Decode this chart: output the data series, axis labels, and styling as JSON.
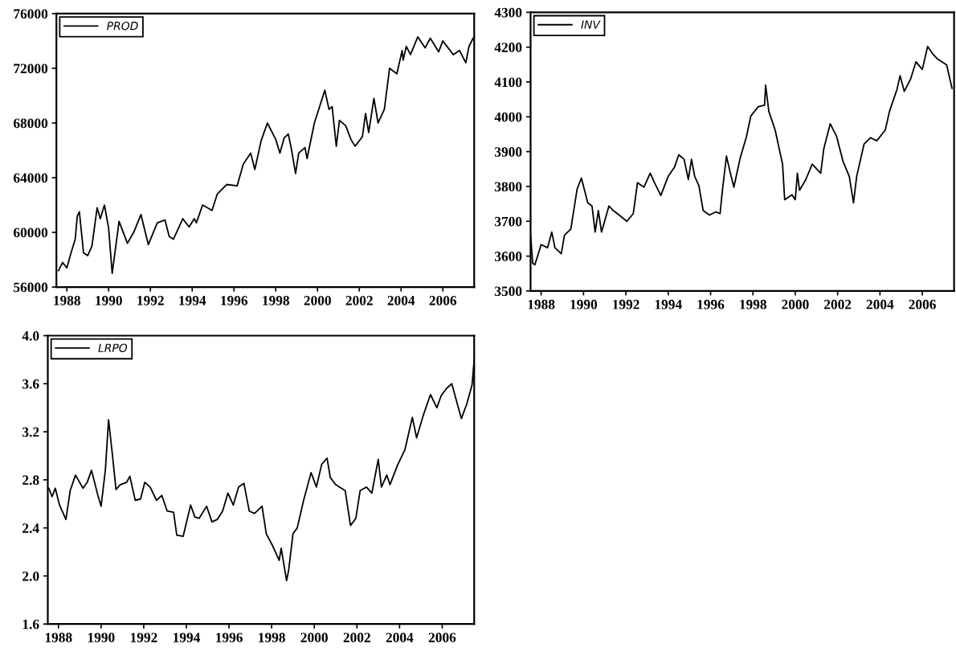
{
  "chart_data": [
    {
      "type": "line",
      "legend": "top left",
      "grid": false,
      "xlim": [
        1987.5,
        2007.5
      ],
      "xticks": [
        1988,
        1990,
        1992,
        1994,
        1996,
        1998,
        2000,
        2002,
        2004,
        2006
      ],
      "ylim": [
        56000,
        76000
      ],
      "yticks": [
        56000,
        60000,
        64000,
        68000,
        72000,
        76000
      ],
      "series": [
        {
          "name": "PROD",
          "color": "#000000",
          "x": [
            1987.6,
            1987.8,
            1988.0,
            1988.2,
            1988.4,
            1988.5,
            1988.6,
            1988.8,
            1989.0,
            1989.2,
            1989.45,
            1989.6,
            1989.8,
            1990.0,
            1990.17,
            1990.5,
            1990.9,
            1991.2,
            1991.55,
            1991.9,
            1992.33,
            1992.7,
            1992.9,
            1993.1,
            1993.55,
            1993.85,
            1994.1,
            1994.2,
            1994.5,
            1994.95,
            1995.2,
            1995.65,
            1996.15,
            1996.45,
            1996.8,
            1997.0,
            1997.3,
            1997.6,
            1998.0,
            1998.2,
            1998.4,
            1998.6,
            1998.75,
            1998.95,
            1999.1,
            1999.4,
            1999.5,
            1999.85,
            2000.35,
            2000.55,
            2000.7,
            2000.9,
            2001.05,
            2001.35,
            2001.6,
            2001.8,
            2002.15,
            2002.3,
            2002.45,
            2002.7,
            2002.9,
            2003.2,
            2003.45,
            2003.8,
            2004.05,
            2004.1,
            2004.25,
            2004.45,
            2004.8,
            2005.15,
            2005.4,
            2005.8,
            2006.0,
            2006.3,
            2006.5,
            2006.8,
            2007.1,
            2007.25,
            2007.45
          ],
          "values": [
            57200,
            57800,
            57400,
            58500,
            59500,
            61200,
            61500,
            58500,
            58300,
            59000,
            61800,
            61000,
            62000,
            60300,
            57000,
            60800,
            59200,
            60000,
            61300,
            59100,
            60700,
            60900,
            59700,
            59500,
            61000,
            60400,
            61000,
            60700,
            62000,
            61600,
            62800,
            63500,
            63400,
            65000,
            65800,
            64600,
            66700,
            68000,
            66800,
            65800,
            66900,
            67200,
            66100,
            64300,
            65800,
            66200,
            65400,
            68000,
            70400,
            69000,
            69200,
            66300,
            68200,
            67800,
            66800,
            66300,
            67000,
            68700,
            67300,
            69800,
            68000,
            69000,
            72000,
            71600,
            73300,
            72600,
            73600,
            73000,
            74300,
            73500,
            74200,
            73200,
            74000,
            73400,
            73000,
            73300,
            72400,
            73600,
            74200
          ]
        }
      ]
    },
    {
      "type": "line",
      "legend": "top left",
      "grid": false,
      "xlim": [
        1987.5,
        2007.5
      ],
      "xticks": [
        1988,
        1990,
        1992,
        1994,
        1996,
        1998,
        2000,
        2002,
        2004,
        2006
      ],
      "ylim": [
        3500,
        4300
      ],
      "yticks": [
        3500,
        3600,
        3700,
        3800,
        3900,
        4000,
        4100,
        4200,
        4300
      ],
      "series": [
        {
          "name": "INV",
          "color": "#000000",
          "x": [
            1987.5,
            1987.6,
            1987.7,
            1988.0,
            1988.3,
            1988.5,
            1988.65,
            1988.95,
            1989.1,
            1989.4,
            1989.7,
            1989.9,
            1990.2,
            1990.4,
            1990.55,
            1990.7,
            1990.85,
            1991.2,
            1991.4,
            1991.6,
            1992.05,
            1992.35,
            1992.55,
            1992.85,
            1993.15,
            1993.35,
            1993.65,
            1994.0,
            1994.3,
            1994.5,
            1994.75,
            1994.95,
            1995.1,
            1995.25,
            1995.45,
            1995.65,
            1995.95,
            1996.25,
            1996.45,
            1996.55,
            1996.75,
            1996.9,
            1997.1,
            1997.4,
            1997.7,
            1997.9,
            1998.25,
            1998.55,
            1998.6,
            1998.75,
            1999.05,
            1999.4,
            1999.5,
            1999.85,
            2000.0,
            2000.1,
            2000.2,
            2000.5,
            2000.8,
            2001.2,
            2001.35,
            2001.65,
            2001.95,
            2002.25,
            2002.55,
            2002.75,
            2002.9,
            2003.25,
            2003.55,
            2003.85,
            2004.25,
            2004.45,
            2004.8,
            2004.95,
            2005.15,
            2005.45,
            2005.7,
            2006.0,
            2006.25,
            2006.5,
            2006.7,
            2007.15,
            2007.4
          ],
          "values": [
            3660,
            3580,
            3575,
            3633,
            3624,
            3669,
            3624,
            3607,
            3660,
            3678,
            3793,
            3824,
            3753,
            3744,
            3669,
            3731,
            3669,
            3744,
            3731,
            3722,
            3700,
            3722,
            3811,
            3798,
            3838,
            3811,
            3774,
            3829,
            3856,
            3891,
            3878,
            3820,
            3878,
            3829,
            3802,
            3731,
            3718,
            3727,
            3722,
            3784,
            3887,
            3847,
            3798,
            3882,
            3944,
            4002,
            4029,
            4033,
            4091,
            4016,
            3962,
            3864,
            3762,
            3776,
            3762,
            3838,
            3789,
            3820,
            3864,
            3838,
            3909,
            3980,
            3944,
            3873,
            3829,
            3753,
            3829,
            3922,
            3940,
            3931,
            3962,
            4016,
            4078,
            4118,
            4073,
            4109,
            4158,
            4136,
            4202,
            4180,
            4167,
            4149,
            4082
          ]
        }
      ]
    },
    {
      "type": "line",
      "legend": "top left",
      "grid": false,
      "xlim": [
        1987.5,
        2007.5
      ],
      "xticks": [
        1988,
        1990,
        1992,
        1994,
        1996,
        1998,
        2000,
        2002,
        2004,
        2006
      ],
      "ylim": [
        1.6,
        4.0
      ],
      "yticks": [
        {
          "value": 1.6,
          "label": "1.6"
        },
        {
          "value": 2.0,
          "label": "2.0"
        },
        {
          "value": 2.4,
          "label": "2.4"
        },
        {
          "value": 2.8,
          "label": "2.8"
        },
        {
          "value": 3.2,
          "label": "3.2"
        },
        {
          "value": 3.6,
          "label": "3.6"
        },
        {
          "value": 4.0,
          "label": "4.0"
        }
      ],
      "series": [
        {
          "name": "LRPO",
          "color": "#000000",
          "x": [
            1987.55,
            1987.7,
            1987.85,
            1988.05,
            1988.35,
            1988.55,
            1988.8,
            1989.15,
            1989.35,
            1989.55,
            1989.85,
            1990.0,
            1990.2,
            1990.35,
            1990.5,
            1990.7,
            1990.9,
            1991.2,
            1991.35,
            1991.6,
            1991.85,
            1992.05,
            1992.3,
            1992.6,
            1992.85,
            1993.1,
            1993.4,
            1993.55,
            1993.85,
            1994.2,
            1994.4,
            1994.6,
            1994.95,
            1995.2,
            1995.45,
            1995.7,
            1995.95,
            1996.2,
            1996.45,
            1996.7,
            1996.95,
            1997.2,
            1997.55,
            1997.75,
            1998.05,
            1998.35,
            1998.45,
            1998.7,
            1998.8,
            1999.0,
            1999.2,
            1999.5,
            1999.85,
            2000.1,
            2000.35,
            2000.6,
            2000.75,
            2001.0,
            2001.45,
            2001.7,
            2001.95,
            2002.15,
            2002.45,
            2002.7,
            2003.0,
            2003.15,
            2003.4,
            2003.55,
            2003.9,
            2004.25,
            2004.6,
            2004.8,
            2005.1,
            2005.45,
            2005.75,
            2005.95,
            2006.2,
            2006.45,
            2006.65,
            2006.9,
            2007.15,
            2007.4,
            2007.5
          ],
          "values": [
            2.73,
            2.66,
            2.73,
            2.59,
            2.47,
            2.71,
            2.84,
            2.73,
            2.78,
            2.88,
            2.67,
            2.58,
            2.88,
            3.3,
            3.06,
            2.72,
            2.76,
            2.78,
            2.83,
            2.63,
            2.64,
            2.78,
            2.74,
            2.63,
            2.67,
            2.54,
            2.53,
            2.34,
            2.33,
            2.59,
            2.49,
            2.48,
            2.58,
            2.45,
            2.47,
            2.54,
            2.69,
            2.59,
            2.74,
            2.77,
            2.54,
            2.52,
            2.58,
            2.35,
            2.25,
            2.13,
            2.23,
            1.96,
            2.05,
            2.35,
            2.4,
            2.63,
            2.86,
            2.74,
            2.93,
            2.98,
            2.82,
            2.76,
            2.71,
            2.42,
            2.48,
            2.71,
            2.74,
            2.69,
            2.97,
            2.74,
            2.84,
            2.76,
            2.92,
            3.05,
            3.32,
            3.15,
            3.33,
            3.51,
            3.4,
            3.5,
            3.56,
            3.6,
            3.47,
            3.31,
            3.43,
            3.59,
            3.8
          ]
        }
      ]
    }
  ]
}
